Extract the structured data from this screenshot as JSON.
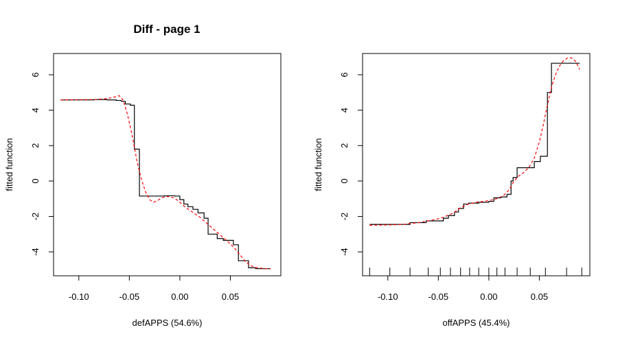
{
  "page_title": "Diff - page 1",
  "chart_data": [
    {
      "type": "line",
      "xlabel": "defAPPS  (54.6%)",
      "ylabel": "fitted function",
      "xlim": [
        -0.125,
        0.1
      ],
      "ylim": [
        -5.35,
        7.2
      ],
      "xticks": [
        -0.1,
        -0.05,
        0.0,
        0.05
      ],
      "xtick_labels": [
        "-0.10",
        "-0.05",
        "0.00",
        "0.05"
      ],
      "yticks": [
        -4,
        -2,
        0,
        2,
        4,
        6
      ],
      "ytick_labels": [
        "-4",
        "-2",
        "0",
        "2",
        "4",
        "6"
      ],
      "rug_ticks": [],
      "series": [
        {
          "style": "step",
          "color": "#000000",
          "x": [
            -0.118,
            -0.085,
            -0.072,
            -0.063,
            -0.058,
            -0.054,
            -0.049,
            -0.045,
            -0.04,
            -0.025,
            -0.015,
            -0.005,
            0.0,
            0.004,
            0.008,
            0.013,
            0.018,
            0.024,
            0.028,
            0.033,
            0.037,
            0.043,
            0.048,
            0.053,
            0.058,
            0.063,
            0.068,
            0.075,
            0.09
          ],
          "y": [
            4.58,
            4.6,
            4.58,
            4.55,
            4.5,
            4.35,
            4.28,
            1.8,
            -0.85,
            -0.85,
            -0.83,
            -0.85,
            -1.05,
            -1.3,
            -1.45,
            -1.6,
            -1.8,
            -2.1,
            -3.0,
            -3.0,
            -3.25,
            -3.35,
            -3.35,
            -3.6,
            -4.5,
            -4.5,
            -4.9,
            -4.95,
            -4.95
          ]
        },
        {
          "style": "smooth",
          "color": "#ff0000",
          "dash": true,
          "x": [
            -0.118,
            -0.1,
            -0.085,
            -0.072,
            -0.064,
            -0.06,
            -0.056,
            -0.052,
            -0.048,
            -0.045,
            -0.042,
            -0.038,
            -0.034,
            -0.03,
            -0.026,
            -0.022,
            -0.018,
            -0.014,
            -0.01,
            -0.006,
            -0.002,
            0.002,
            0.006,
            0.01,
            0.015,
            0.02,
            0.025,
            0.03,
            0.035,
            0.04,
            0.045,
            0.05,
            0.055,
            0.06,
            0.065,
            0.07,
            0.075,
            0.08,
            0.085,
            0.09
          ],
          "y": [
            4.58,
            4.59,
            4.6,
            4.65,
            4.75,
            4.82,
            4.55,
            3.8,
            2.8,
            1.9,
            1.0,
            0.1,
            -0.6,
            -1.05,
            -1.2,
            -1.1,
            -0.95,
            -0.88,
            -0.88,
            -0.95,
            -1.1,
            -1.3,
            -1.5,
            -1.65,
            -1.85,
            -2.05,
            -2.3,
            -2.55,
            -2.8,
            -3.05,
            -3.3,
            -3.55,
            -3.85,
            -4.2,
            -4.55,
            -4.78,
            -4.88,
            -4.92,
            -4.95,
            -4.95
          ]
        }
      ]
    },
    {
      "type": "line",
      "xlabel": "offAPPS  (45.4%)",
      "ylabel": "fitted function",
      "xlim": [
        -0.125,
        0.1
      ],
      "ylim": [
        -5.35,
        7.2
      ],
      "xticks": [
        -0.1,
        -0.05,
        0.0,
        0.05
      ],
      "xtick_labels": [
        "-0.10",
        "-0.05",
        "0.00",
        "0.05"
      ],
      "yticks": [
        -4,
        -2,
        0,
        2,
        4,
        6
      ],
      "ytick_labels": [
        "-4",
        "-2",
        "0",
        "2",
        "4",
        "6"
      ],
      "rug_ticks": [
        -0.118,
        -0.098,
        -0.078,
        -0.06,
        -0.048,
        -0.038,
        -0.028,
        -0.019,
        -0.01,
        0.0,
        0.008,
        0.016,
        0.028,
        0.041,
        0.056,
        0.077,
        0.092
      ],
      "series": [
        {
          "style": "step",
          "color": "#000000",
          "x": [
            -0.118,
            -0.09,
            -0.078,
            -0.062,
            -0.045,
            -0.04,
            -0.034,
            -0.03,
            -0.025,
            -0.02,
            -0.01,
            0.0,
            0.005,
            0.012,
            0.018,
            0.022,
            0.024,
            0.028,
            0.04,
            0.045,
            0.051,
            0.053,
            0.058,
            0.062,
            0.09
          ],
          "y": [
            -2.45,
            -2.45,
            -2.35,
            -2.25,
            -2.1,
            -1.95,
            -1.75,
            -1.55,
            -1.3,
            -1.25,
            -1.2,
            -1.15,
            -0.95,
            -0.9,
            -0.75,
            0.0,
            0.2,
            0.75,
            0.75,
            1.1,
            1.4,
            1.4,
            5.0,
            6.65,
            6.65
          ]
        },
        {
          "style": "smooth",
          "color": "#ff0000",
          "dash": true,
          "x": [
            -0.118,
            -0.1,
            -0.085,
            -0.07,
            -0.055,
            -0.045,
            -0.035,
            -0.028,
            -0.02,
            -0.012,
            -0.005,
            0.0,
            0.005,
            0.01,
            0.015,
            0.02,
            0.025,
            0.03,
            0.035,
            0.04,
            0.045,
            0.05,
            0.054,
            0.058,
            0.062,
            0.066,
            0.07,
            0.074,
            0.078,
            0.082,
            0.086,
            0.09
          ],
          "y": [
            -2.5,
            -2.48,
            -2.45,
            -2.35,
            -2.2,
            -2.05,
            -1.8,
            -1.5,
            -1.3,
            -1.2,
            -1.15,
            -1.1,
            -1.05,
            -0.95,
            -0.8,
            -0.5,
            0.0,
            0.3,
            0.5,
            0.8,
            1.3,
            2.2,
            3.2,
            4.3,
            5.3,
            6.0,
            6.5,
            6.8,
            6.95,
            6.95,
            6.75,
            6.3
          ]
        }
      ]
    }
  ]
}
